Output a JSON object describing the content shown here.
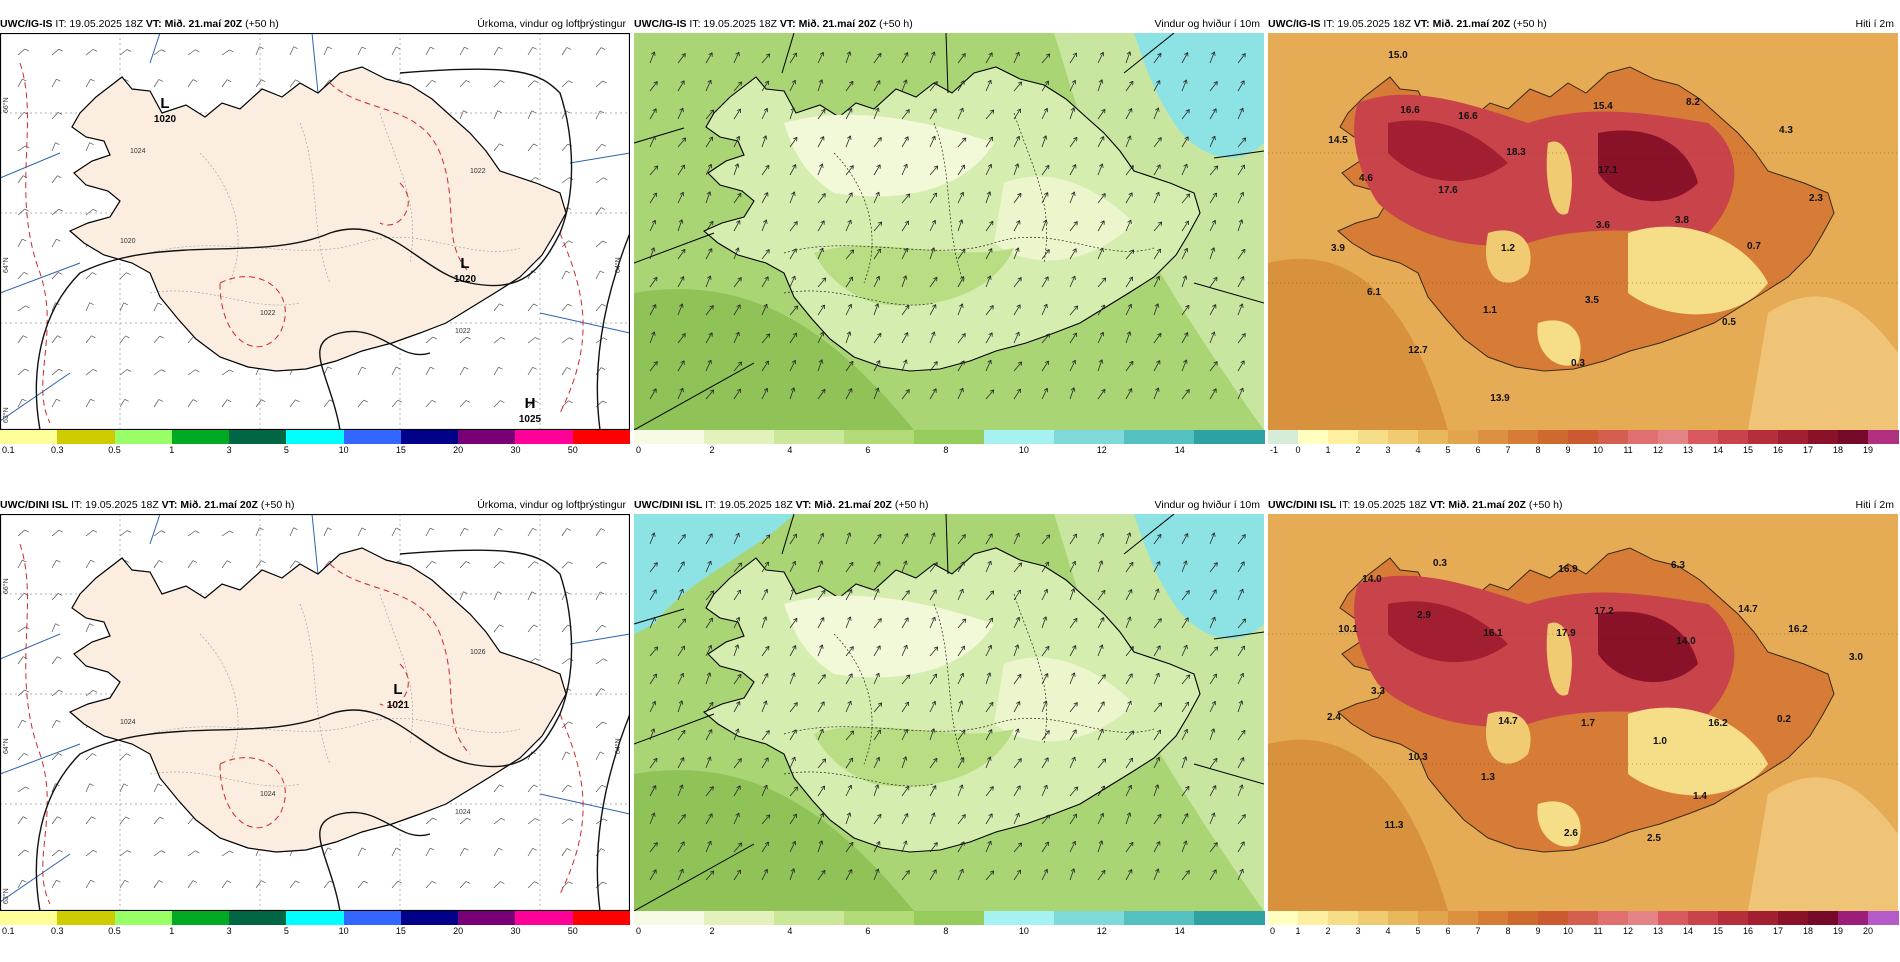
{
  "common": {
    "init": "IT: 19.05.2025 18Z",
    "valid": "VT: Mið. 21.maí 20Z",
    "lead": "(+50 h)"
  },
  "rows": [
    {
      "model": "UWC/IG-IS",
      "panels": [
        {
          "kind": "precip",
          "title": "Úrkoma, vindur og loftþrýstingur",
          "pressure": [
            {
              "type": "L",
              "value": "1020",
              "label": "L"
            },
            {
              "type": "L",
              "value": "1020",
              "label": "L"
            },
            {
              "type": "H",
              "value": "1025",
              "label": "H"
            }
          ],
          "isobars": [
            "1020",
            "1022",
            "1022",
            "1022",
            "1024"
          ],
          "lat_labels": [
            "66°N",
            "64°N",
            "64°N",
            "63°N"
          ]
        },
        {
          "kind": "wind",
          "title": "Vindur og hviður í 10m"
        },
        {
          "kind": "temp",
          "title": "Hiti í 2m",
          "values": [
            "15.0",
            "16.6",
            "16.6",
            "14.5",
            "18.3",
            "15.4",
            "8.2",
            "4.3",
            "4.6",
            "17.6",
            "17.1",
            "3.9",
            "3.6",
            "3.8",
            "2.3",
            "1.2",
            "0.7",
            "6.1",
            "1.1",
            "3.5",
            "0.5",
            "12.7",
            "0.3",
            "13.9"
          ]
        }
      ]
    },
    {
      "model": "UWC/DINI ISL",
      "panels": [
        {
          "kind": "precip",
          "title": "Úrkoma, vindur og loftþrýstingur",
          "pressure": [
            {
              "type": "L",
              "value": "1021",
              "label": "L"
            }
          ],
          "isobars": [
            "1024",
            "1024",
            "1024",
            "1026"
          ],
          "lat_labels": [
            "66°N",
            "64°N",
            "64°N",
            "63°N"
          ]
        },
        {
          "kind": "wind",
          "title": "Vindur og hviður í 10m"
        },
        {
          "kind": "temp",
          "title": "Hiti í 2m",
          "values": [
            "0.3",
            "14.0",
            "16.9",
            "6.3",
            "10.1",
            "2.9",
            "16.1",
            "17.2",
            "14.7",
            "17.9",
            "14.0",
            "16.2",
            "3.0",
            "3.3",
            "2.4",
            "14.7",
            "1.7",
            "16.2",
            "0.2",
            "1.0",
            "10.3",
            "1.3",
            "1.4",
            "11.3",
            "2.6",
            "2.5"
          ]
        }
      ]
    }
  ],
  "colorbars": {
    "precip": {
      "labels": [
        "0.1",
        "0.3",
        "0.5",
        "1",
        "3",
        "5",
        "10",
        "15",
        "20",
        "30",
        "50"
      ],
      "colors": [
        "#ffff99",
        "#cccc00",
        "#99ff66",
        "#00aa22",
        "#006644",
        "#00ffff",
        "#3366ff",
        "#000088",
        "#770077",
        "#ff0099",
        "#ff0000"
      ]
    },
    "wind": {
      "labels": [
        "0",
        "2",
        "4",
        "6",
        "8",
        "10",
        "12",
        "14"
      ],
      "colors": [
        "#f7fbe5",
        "#e3f2bd",
        "#cbe89a",
        "#b2db78",
        "#95cc5c",
        "#a5f2f0",
        "#7fd9d9",
        "#55c0c0",
        "#2ea2a2"
      ]
    },
    "temp_top": {
      "labels": [
        "-1",
        "0",
        "1",
        "2",
        "3",
        "4",
        "5",
        "6",
        "7",
        "8",
        "9",
        "10",
        "11",
        "12",
        "13",
        "14",
        "15",
        "16",
        "17",
        "18",
        "19"
      ],
      "colors": [
        "#d6ecd8",
        "#ffffc0",
        "#fdf0a0",
        "#f6dd88",
        "#f0cb72",
        "#e9b85c",
        "#e2a44c",
        "#db9140",
        "#d67c36",
        "#cf6a2e",
        "#cc5a30",
        "#d45f4e",
        "#e07070",
        "#e38385",
        "#d95a5e",
        "#c9434a",
        "#b52e3a",
        "#a11f30",
        "#8a1228",
        "#74092a",
        "#b02f7e"
      ]
    },
    "temp_bottom": {
      "labels": [
        "0",
        "1",
        "2",
        "3",
        "4",
        "5",
        "6",
        "7",
        "8",
        "9",
        "10",
        "11",
        "12",
        "13",
        "14",
        "15",
        "16",
        "17",
        "18",
        "19",
        "20"
      ],
      "colors": [
        "#ffffc0",
        "#fdf0a0",
        "#f6dd88",
        "#f0cb72",
        "#e9b85c",
        "#e2a44c",
        "#db9140",
        "#d67c36",
        "#cf6a2e",
        "#cc5a30",
        "#d45f4e",
        "#e07070",
        "#e38385",
        "#d95a5e",
        "#c9434a",
        "#b52e3a",
        "#a11f30",
        "#8a1228",
        "#74092a",
        "#9b1f7a",
        "#b55bc9"
      ]
    }
  },
  "colors": {
    "land_precip": "#fbeee0",
    "isobar": "#111111",
    "rain_contour": "#cc2a2a",
    "grid_blue": "#2a64b0"
  }
}
